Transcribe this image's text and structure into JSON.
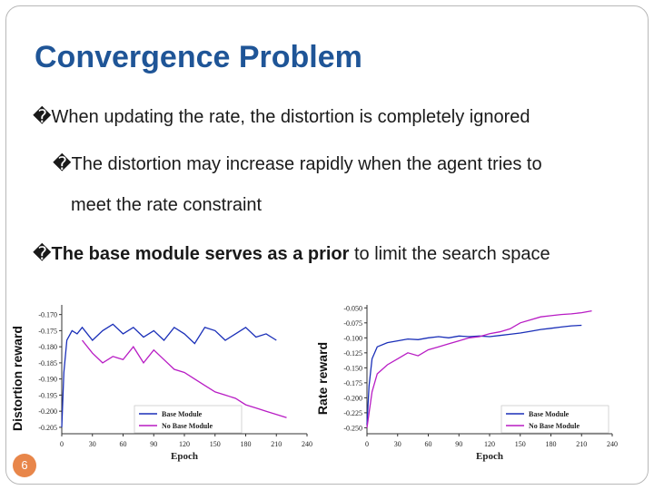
{
  "slide": {
    "title": "Convergence Problem",
    "bullets": [
      {
        "mark": "�",
        "text": "When updating the rate, the distortion is completely ignored"
      },
      {
        "mark": "�",
        "text": "The distortion may increase rapidly when the agent tries to"
      },
      {
        "text": "meet the rate constraint"
      },
      {
        "mark": "�",
        "bold_text": "The base module serves as a prior",
        "text": " to limit the search space"
      }
    ],
    "page_number": "6"
  },
  "colors": {
    "title": "#1f5597",
    "base_series": "#1a2fb8",
    "no_base_series": "#b81cc4",
    "page_badge": "#e8864a"
  },
  "chart_data": [
    {
      "type": "line",
      "ylabel": "Distortion reward",
      "xlabel": "Epoch",
      "xlim": [
        0,
        240
      ],
      "ylim": [
        -0.207,
        -0.167
      ],
      "xticks": [
        0,
        30,
        60,
        90,
        120,
        150,
        180,
        210,
        240
      ],
      "yticks": [
        -0.17,
        -0.175,
        -0.18,
        -0.185,
        -0.19,
        -0.195,
        -0.2,
        -0.205
      ],
      "ytick_labels": [
        "-0.170",
        "-0.175",
        "-0.180",
        "-0.185",
        "-0.190",
        "-0.195",
        "-0.200",
        "-0.205"
      ],
      "legend_position": "bottom-center",
      "series": [
        {
          "name": "Base Module",
          "color": "#1a2fb8",
          "x": [
            0,
            2,
            5,
            10,
            15,
            20,
            30,
            40,
            50,
            60,
            70,
            80,
            90,
            100,
            110,
            120,
            130,
            140,
            150,
            160,
            170,
            180,
            190,
            200,
            210
          ],
          "y": [
            -0.205,
            -0.188,
            -0.178,
            -0.175,
            -0.176,
            -0.174,
            -0.178,
            -0.175,
            -0.173,
            -0.176,
            -0.174,
            -0.177,
            -0.175,
            -0.178,
            -0.174,
            -0.176,
            -0.179,
            -0.174,
            -0.175,
            -0.178,
            -0.176,
            -0.174,
            -0.177,
            -0.176,
            -0.178
          ]
        },
        {
          "name": "No Base Module",
          "color": "#b81cc4",
          "x": [
            20,
            30,
            40,
            50,
            60,
            70,
            80,
            90,
            100,
            110,
            120,
            130,
            140,
            150,
            160,
            170,
            180,
            190,
            200,
            210,
            220
          ],
          "y": [
            -0.178,
            -0.182,
            -0.185,
            -0.183,
            -0.184,
            -0.18,
            -0.185,
            -0.181,
            -0.184,
            -0.187,
            -0.188,
            -0.19,
            -0.192,
            -0.194,
            -0.195,
            -0.196,
            -0.198,
            -0.199,
            -0.2,
            -0.201,
            -0.202
          ]
        }
      ]
    },
    {
      "type": "line",
      "ylabel": "Rate reward",
      "xlabel": "Epoch",
      "xlim": [
        0,
        240
      ],
      "ylim": [
        -0.26,
        -0.045
      ],
      "xticks": [
        0,
        30,
        60,
        90,
        120,
        150,
        180,
        210,
        240
      ],
      "yticks": [
        -0.05,
        -0.075,
        -0.1,
        -0.125,
        -0.15,
        -0.175,
        -0.2,
        -0.225,
        -0.25
      ],
      "ytick_labels": [
        "-0.050",
        "-0.075",
        "-0.100",
        "-0.125",
        "-0.150",
        "-0.175",
        "-0.200",
        "-0.225",
        "-0.250"
      ],
      "legend_position": "bottom-right",
      "series": [
        {
          "name": "Base Module",
          "color": "#1a2fb8",
          "x": [
            0,
            2,
            5,
            10,
            20,
            30,
            40,
            50,
            60,
            70,
            80,
            90,
            100,
            110,
            120,
            130,
            140,
            150,
            160,
            170,
            180,
            190,
            200,
            210
          ],
          "y": [
            -0.245,
            -0.18,
            -0.135,
            -0.115,
            -0.108,
            -0.105,
            -0.102,
            -0.103,
            -0.1,
            -0.098,
            -0.1,
            -0.097,
            -0.098,
            -0.097,
            -0.098,
            -0.096,
            -0.094,
            -0.092,
            -0.089,
            -0.086,
            -0.084,
            -0.082,
            -0.08,
            -0.079
          ]
        },
        {
          "name": "No Base Module",
          "color": "#b81cc4",
          "x": [
            0,
            5,
            10,
            20,
            30,
            40,
            50,
            60,
            70,
            80,
            90,
            100,
            110,
            120,
            130,
            140,
            150,
            160,
            170,
            180,
            190,
            200,
            210,
            220
          ],
          "y": [
            -0.25,
            -0.19,
            -0.16,
            -0.145,
            -0.135,
            -0.125,
            -0.13,
            -0.12,
            -0.115,
            -0.11,
            -0.105,
            -0.1,
            -0.098,
            -0.093,
            -0.09,
            -0.085,
            -0.075,
            -0.07,
            -0.065,
            -0.063,
            -0.061,
            -0.06,
            -0.058,
            -0.055
          ]
        }
      ]
    }
  ]
}
